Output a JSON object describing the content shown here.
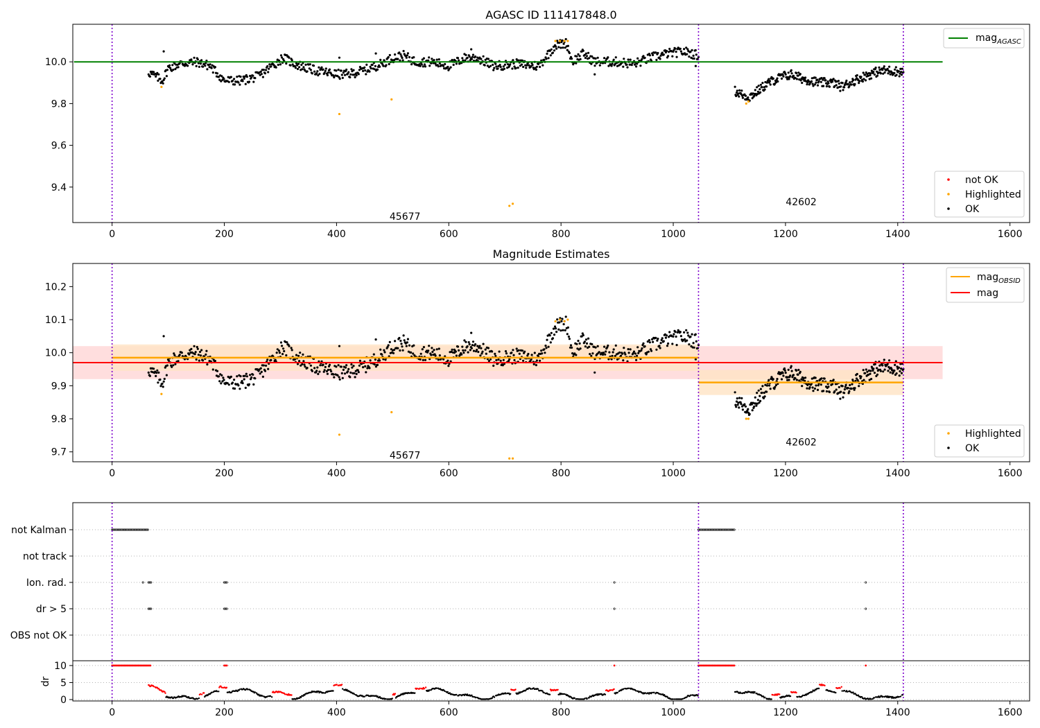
{
  "chart_data": [
    {
      "type": "scatter",
      "title": "AGASC ID 111417848.0",
      "xlim": [
        -70,
        1635
      ],
      "ylim": [
        9.23,
        10.18
      ],
      "xticks": [
        0,
        200,
        400,
        600,
        800,
        1000,
        1200,
        1400,
        1600
      ],
      "yticks": [
        9.4,
        9.6,
        9.8,
        10.0
      ],
      "mag_agasc": 10.0,
      "mag_agasc_xrange": [
        0,
        1480
      ],
      "obs_boundaries": [
        0,
        1045,
        1410
      ],
      "obs_labels": [
        {
          "text": "45677",
          "x": 522,
          "y": 9.26
        },
        {
          "text": "42602",
          "x": 1228,
          "y": 9.33
        }
      ],
      "segments": [
        {
          "x_start": 65,
          "x_end": 1045,
          "knots": [
            [
              65,
              9.95
            ],
            [
              90,
              9.91
            ],
            [
              100,
              9.97
            ],
            [
              120,
              9.99
            ],
            [
              150,
              10.0
            ],
            [
              175,
              9.98
            ],
            [
              200,
              9.91
            ],
            [
              230,
              9.91
            ],
            [
              260,
              9.93
            ],
            [
              290,
              9.99
            ],
            [
              305,
              10.02
            ],
            [
              325,
              9.99
            ],
            [
              360,
              9.96
            ],
            [
              400,
              9.94
            ],
            [
              420,
              9.94
            ],
            [
              450,
              9.96
            ],
            [
              480,
              9.99
            ],
            [
              500,
              10.02
            ],
            [
              520,
              10.03
            ],
            [
              540,
              10.0
            ],
            [
              570,
              10.0
            ],
            [
              600,
              9.98
            ],
            [
              630,
              10.02
            ],
            [
              650,
              10.02
            ],
            [
              680,
              9.98
            ],
            [
              720,
              9.99
            ],
            [
              760,
              9.98
            ],
            [
              790,
              10.08
            ],
            [
              810,
              10.09
            ],
            [
              820,
              10.0
            ],
            [
              840,
              10.04
            ],
            [
              860,
              10.0
            ],
            [
              900,
              10.0
            ],
            [
              930,
              9.99
            ],
            [
              960,
              10.02
            ],
            [
              990,
              10.04
            ],
            [
              1020,
              10.05
            ],
            [
              1045,
              10.03
            ]
          ],
          "n": 760
        },
        {
          "x_start": 1110,
          "x_end": 1410,
          "knots": [
            [
              1110,
              9.86
            ],
            [
              1125,
              9.84
            ],
            [
              1135,
              9.83
            ],
            [
              1150,
              9.86
            ],
            [
              1170,
              9.9
            ],
            [
              1195,
              9.93
            ],
            [
              1210,
              9.94
            ],
            [
              1230,
              9.92
            ],
            [
              1260,
              9.9
            ],
            [
              1285,
              9.9
            ],
            [
              1300,
              9.88
            ],
            [
              1330,
              9.92
            ],
            [
              1360,
              9.95
            ],
            [
              1380,
              9.96
            ],
            [
              1410,
              9.95
            ]
          ],
          "n": 300
        }
      ],
      "highlighted": [
        [
          88,
          9.88
        ],
        [
          405,
          9.75
        ],
        [
          498,
          9.82
        ],
        [
          708,
          9.31
        ],
        [
          714,
          9.32
        ],
        [
          790,
          10.1
        ],
        [
          798,
          10.1
        ],
        [
          806,
          10.1
        ],
        [
          812,
          10.1
        ],
        [
          1130,
          9.8
        ],
        [
          1134,
          9.81
        ]
      ],
      "outliers": [
        [
          92,
          10.05
        ],
        [
          405,
          10.02
        ],
        [
          470,
          10.04
        ],
        [
          610,
          10.0
        ],
        [
          640,
          10.06
        ],
        [
          860,
          9.94
        ],
        [
          1040,
          9.98
        ]
      ],
      "legend_line": "mag",
      "legend_line_subscript": "AGASC",
      "legend_points": [
        "not OK",
        "Highlighted",
        "OK"
      ],
      "colors": {
        "ok": "#000000",
        "highlighted": "#ffa500",
        "not_ok": "#ff0000",
        "agasc": "#008000",
        "obs_line": "#7e00cc"
      }
    },
    {
      "type": "scatter",
      "title": "Magnitude Estimates",
      "xlim": [
        -70,
        1635
      ],
      "ylim": [
        9.67,
        10.27
      ],
      "xticks": [
        0,
        200,
        400,
        600,
        800,
        1000,
        1200,
        1400,
        1600
      ],
      "yticks": [
        9.7,
        9.8,
        9.9,
        10.0,
        10.1,
        10.2
      ],
      "mag": 9.97,
      "mag_band": [
        9.92,
        10.02
      ],
      "mag_xrange": [
        -70,
        1480
      ],
      "obs_mags": [
        {
          "x_range": [
            0,
            1045
          ],
          "value": 9.985,
          "band": [
            9.945,
            10.025
          ]
        },
        {
          "x_range": [
            1045,
            1410
          ],
          "value": 9.91,
          "band": [
            9.872,
            9.948
          ]
        }
      ],
      "obs_boundaries": [
        0,
        1045,
        1410
      ],
      "obs_labels": [
        {
          "text": "45677",
          "x": 522,
          "y": 9.69
        },
        {
          "text": "42602",
          "x": 1228,
          "y": 9.73
        }
      ],
      "highlighted": [
        [
          88,
          9.875
        ],
        [
          405,
          9.752
        ],
        [
          498,
          9.82
        ],
        [
          708,
          9.68
        ],
        [
          714,
          9.68
        ],
        [
          790,
          10.095
        ],
        [
          798,
          10.1
        ],
        [
          806,
          10.095
        ],
        [
          812,
          10.1
        ],
        [
          1130,
          9.8
        ],
        [
          1134,
          9.8
        ]
      ],
      "legend_lines": [
        {
          "name": "mag",
          "subscript": "OBSID",
          "color": "#ffa500"
        },
        {
          "name": "mag",
          "subscript": "",
          "color": "#ff0000"
        }
      ],
      "legend_points": [
        "Highlighted",
        "OK"
      ],
      "colors": {
        "mag": "#ff0000",
        "mag_band": "#ffd0d0",
        "obs": "#ffa500",
        "obs_band": "#ffe3c4"
      }
    },
    {
      "type": "scatter",
      "title": "",
      "xlim": [
        -70,
        1635
      ],
      "xticks": [
        0,
        200,
        400,
        600,
        800,
        1000,
        1200,
        1400,
        1600
      ],
      "flag_rows": [
        "not Kalman",
        "not track",
        "Ion. rad.",
        "dr > 5",
        "OBS not OK"
      ],
      "flags": {
        "not Kalman": [
          [
            0,
            65
          ],
          [
            1045,
            1110
          ]
        ],
        "not track": [],
        "Ion. rad.": [
          [
            55,
            57
          ],
          [
            65,
            70
          ],
          [
            200,
            205
          ],
          [
            895,
            896
          ],
          [
            1343,
            1344
          ]
        ],
        "dr > 5": [
          [
            65,
            70
          ],
          [
            200,
            205
          ],
          [
            895,
            896
          ],
          [
            1343,
            1344
          ]
        ],
        "OBS not OK": []
      },
      "dr_ylabel": "dr",
      "dr_ylim": [
        0,
        11
      ],
      "dr_yticks": [
        0,
        5,
        10
      ],
      "dr_red_top": [
        [
          0,
          70
        ],
        [
          200,
          205
        ],
        [
          895,
          897
        ],
        [
          1045,
          1110
        ],
        [
          1343,
          1344
        ]
      ],
      "dr_segments": [
        [
          65,
          1045
        ],
        [
          1110,
          1410
        ]
      ],
      "dr_red": [
        [
          65,
          95
        ],
        [
          155,
          165
        ],
        [
          190,
          205
        ],
        [
          285,
          320
        ],
        [
          395,
          410
        ],
        [
          500,
          505
        ],
        [
          540,
          560
        ],
        [
          710,
          720
        ],
        [
          780,
          795
        ],
        [
          880,
          895
        ],
        [
          1175,
          1190
        ],
        [
          1210,
          1220
        ],
        [
          1260,
          1270
        ],
        [
          1290,
          1300
        ]
      ]
    }
  ]
}
